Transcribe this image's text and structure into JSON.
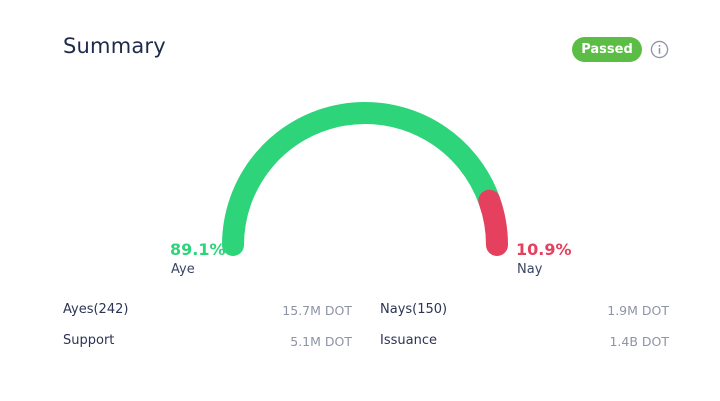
{
  "summary": {
    "title": "Summary",
    "status": "Passed",
    "icons": {
      "info": "info-icon"
    },
    "colors": {
      "aye": "#2ed47a",
      "nay": "#e5405e",
      "status": "#5bbd45"
    }
  },
  "votes": {
    "aye_percent": "89.1%",
    "aye_label": "Aye",
    "aye_fraction": 0.891,
    "nay_percent": "10.9%",
    "nay_label": "Nay",
    "nay_fraction": 0.109
  },
  "stats": {
    "ayes_label": "Ayes(242)",
    "ayes_value": "15.7M DOT",
    "nays_label": "Nays(150)",
    "nays_value": "1.9M DOT",
    "support_label": "Support",
    "support_value": "5.1M DOT",
    "issuance_label": "Issuance",
    "issuance_value": "1.4B DOT"
  }
}
